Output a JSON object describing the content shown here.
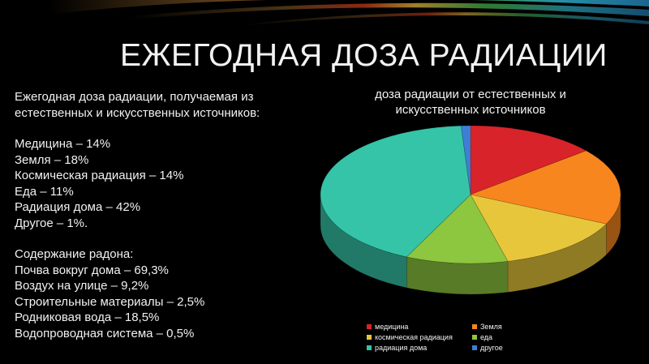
{
  "slide": {
    "title": "ЕЖЕГОДНАЯ ДОЗА РАДИАЦИИ"
  },
  "left_text": {
    "intro": [
      "Ежегодная доза радиации, получаемая из",
      "естественных и искусственных источников:"
    ],
    "sources": [
      "Медицина – 14%",
      "Земля – 18%",
      "Космическая радиация – 14%",
      "Еда – 11%",
      "Радиация дома – 42%",
      "Другое – 1%."
    ],
    "radon_heading": "Содержание радона:",
    "radon": [
      "Почва вокруг дома – 69,3%",
      "Воздух на улице – 9,2%",
      "Строительные материалы – 2,5%",
      "Родниковая вода – 18,5%",
      "Водопроводная система – 0,5%"
    ]
  },
  "chart_data": {
    "type": "pie",
    "title": "доза радиации от естественных и искусственных источников",
    "labels": [
      "медицина",
      "Земля",
      "космическая радиация",
      "еда",
      "радиация дома",
      "другое"
    ],
    "values": [
      14,
      18,
      14,
      11,
      42,
      1
    ],
    "colors": [
      "#d8232a",
      "#f7861f",
      "#e8c63c",
      "#8dc63f",
      "#35c4a8",
      "#3e7fd6"
    ],
    "legend": "bottom",
    "style": "3d"
  }
}
